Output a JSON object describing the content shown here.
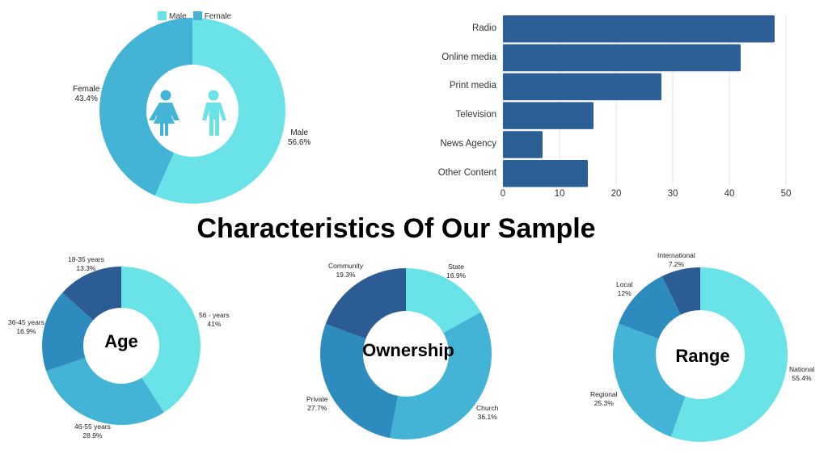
{
  "title": "Characteristics Of Our Sample",
  "colors": {
    "c1": "#6ae3e8",
    "c2": "#44b4d6",
    "c3": "#2e8bbd",
    "c4": "#2b5d94",
    "bar": "#2d5f97"
  },
  "chart_data": [
    {
      "type": "pie",
      "name": "gender",
      "center_label": "",
      "legend": [
        "Male",
        "Female"
      ],
      "slices": [
        {
          "label": "Male",
          "value": 56.6,
          "pct": "56.6%"
        },
        {
          "label": "Female",
          "value": 43.4,
          "pct": "43.4%"
        }
      ]
    },
    {
      "type": "bar",
      "orientation": "horizontal",
      "categories": [
        "Radio",
        "Online media",
        "Print media",
        "Television",
        "News Agency",
        "Other Content"
      ],
      "values": [
        48,
        42,
        28,
        16,
        7,
        15
      ],
      "xlim": [
        0,
        50
      ],
      "xticks": [
        "0",
        "10",
        "20",
        "30",
        "40",
        "50"
      ],
      "grid": true
    },
    {
      "type": "pie",
      "name": "age",
      "center_label": "Age",
      "slices": [
        {
          "label": "56 - years",
          "value": 41,
          "pct": "41%"
        },
        {
          "label": "46-55 years",
          "value": 28.9,
          "pct": "28.9%"
        },
        {
          "label": "36-45 years",
          "value": 16.9,
          "pct": "16.9%"
        },
        {
          "label": "18-35 years",
          "value": 13.3,
          "pct": "13.3%"
        }
      ]
    },
    {
      "type": "pie",
      "name": "ownership",
      "center_label": "Ownership",
      "slices": [
        {
          "label": "State",
          "value": 16.9,
          "pct": "16.9%"
        },
        {
          "label": "Church",
          "value": 36.1,
          "pct": "36.1%"
        },
        {
          "label": "Private",
          "value": 27.7,
          "pct": "27.7%"
        },
        {
          "label": "Community",
          "value": 19.3,
          "pct": "19.3%"
        }
      ]
    },
    {
      "type": "pie",
      "name": "range",
      "center_label": "Range",
      "slices": [
        {
          "label": "National",
          "value": 55.4,
          "pct": "55.4%"
        },
        {
          "label": "Regional",
          "value": 25.3,
          "pct": "25.3%"
        },
        {
          "label": "Local",
          "value": 12,
          "pct": "12%"
        },
        {
          "label": "International",
          "value": 7.2,
          "pct": "7.2%"
        }
      ]
    }
  ]
}
